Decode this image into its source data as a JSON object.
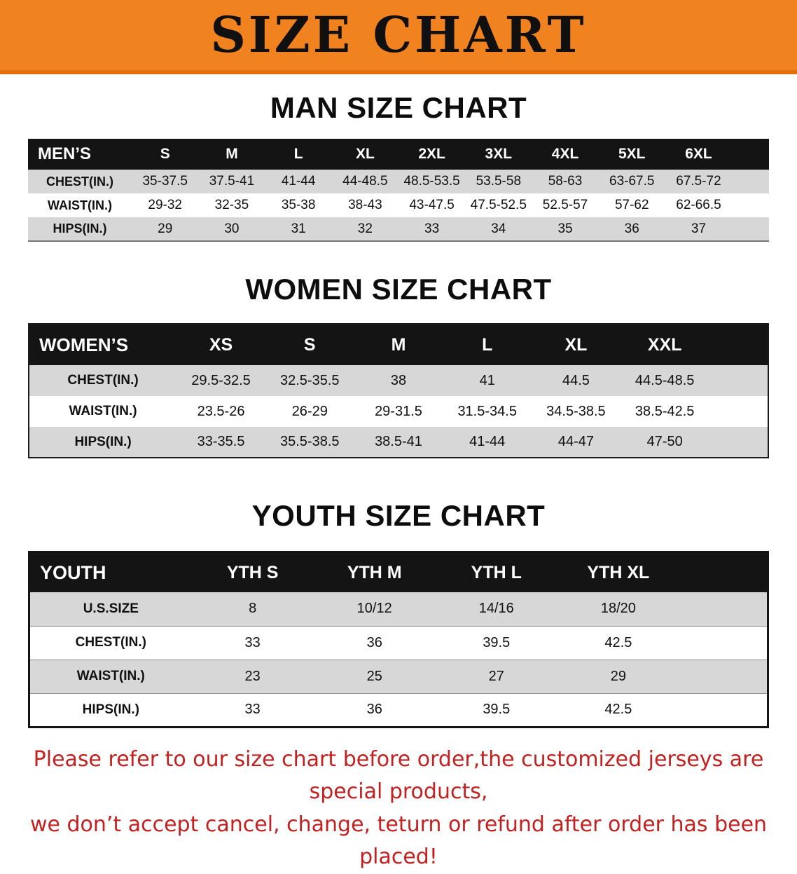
{
  "banner": {
    "title": "SIZE CHART",
    "bg_color": "#f0831f"
  },
  "sections": [
    {
      "heading": "MAN SIZE CHART",
      "table": {
        "name": "mens",
        "header": [
          "MEN’S",
          "S",
          "M",
          "L",
          "XL",
          "2XL",
          "3XL",
          "4XL",
          "5XL",
          "6XL"
        ],
        "rows": [
          {
            "label": "CHEST(IN.)",
            "values": [
              "35-37.5",
              "37.5-41",
              "41-44",
              "44-48.5",
              "48.5-53.5",
              "53.5-58",
              "58-63",
              "63-67.5",
              "67.5-72"
            ]
          },
          {
            "label": "WAIST(IN.)",
            "values": [
              "29-32",
              "32-35",
              "35-38",
              "38-43",
              "43-47.5",
              "47.5-52.5",
              "52.5-57",
              "57-62",
              "62-66.5"
            ]
          },
          {
            "label": "HIPS(IN.)",
            "values": [
              "29",
              "30",
              "31",
              "32",
              "33",
              "34",
              "35",
              "36",
              "37"
            ]
          }
        ]
      }
    },
    {
      "heading": "WOMEN SIZE CHART",
      "table": {
        "name": "womens",
        "header": [
          "WOMEN’S",
          "XS",
          "S",
          "M",
          "L",
          "XL",
          "XXL"
        ],
        "rows": [
          {
            "label": "CHEST(IN.)",
            "values": [
              "29.5-32.5",
              "32.5-35.5",
              "38",
              "41",
              "44.5",
              "44.5-48.5"
            ]
          },
          {
            "label": "WAIST(IN.)",
            "values": [
              "23.5-26",
              "26-29",
              "29-31.5",
              "31.5-34.5",
              "34.5-38.5",
              "38.5-42.5"
            ]
          },
          {
            "label": "HIPS(IN.)",
            "values": [
              "33-35.5",
              "35.5-38.5",
              "38.5-41",
              "41-44",
              "44-47",
              "47-50"
            ]
          }
        ]
      }
    },
    {
      "heading": "YOUTH SIZE CHART",
      "table": {
        "name": "youth",
        "header": [
          "YOUTH",
          "YTH S",
          "YTH M",
          "YTH L",
          "YTH XL"
        ],
        "rows": [
          {
            "label": "U.S.SIZE",
            "values": [
              "8",
              "10/12",
              "14/16",
              "18/20"
            ]
          },
          {
            "label": "CHEST(IN.)",
            "values": [
              "33",
              "36",
              "39.5",
              "42.5"
            ]
          },
          {
            "label": "WAIST(IN.)",
            "values": [
              "23",
              "25",
              "27",
              "29"
            ]
          },
          {
            "label": "HIPS(IN.)",
            "values": [
              "33",
              "36",
              "39.5",
              "42.5"
            ]
          }
        ]
      }
    }
  ],
  "disclaimer": {
    "line1": "Please refer to our size chart before order,the customized jerseys are special products,",
    "line2": "we don’t accept cancel, change, teturn or refund after order has been placed!",
    "color": "#c32120"
  }
}
